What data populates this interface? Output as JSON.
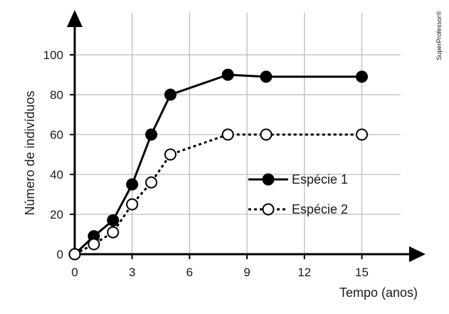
{
  "watermark": "SuperProfessor®",
  "chart_data": {
    "type": "line",
    "title": "",
    "xlabel": "Tempo (anos)",
    "ylabel": "Número de indivíduos",
    "xlim": [
      0,
      15
    ],
    "ylim": [
      0,
      100
    ],
    "x_ticks": [
      0,
      3,
      6,
      9,
      12,
      15
    ],
    "y_ticks": [
      0,
      20,
      40,
      60,
      80,
      100
    ],
    "grid": true,
    "legend_position": "center-right",
    "series": [
      {
        "name": "Espécie 1",
        "style": "solid",
        "marker": "filled-circle",
        "color": "#000000",
        "points": [
          [
            0,
            0
          ],
          [
            1,
            9
          ],
          [
            2,
            17
          ],
          [
            3,
            35
          ],
          [
            4,
            60
          ],
          [
            5,
            80
          ],
          [
            8,
            90
          ],
          [
            10,
            89
          ],
          [
            15,
            89
          ]
        ]
      },
      {
        "name": "Espécie 2",
        "style": "dotted",
        "marker": "open-circle",
        "color": "#000000",
        "points": [
          [
            0,
            0
          ],
          [
            1,
            5
          ],
          [
            2,
            11
          ],
          [
            3,
            25
          ],
          [
            4,
            36
          ],
          [
            5,
            50
          ],
          [
            8,
            60
          ],
          [
            10,
            60
          ],
          [
            15,
            60
          ]
        ]
      }
    ]
  }
}
